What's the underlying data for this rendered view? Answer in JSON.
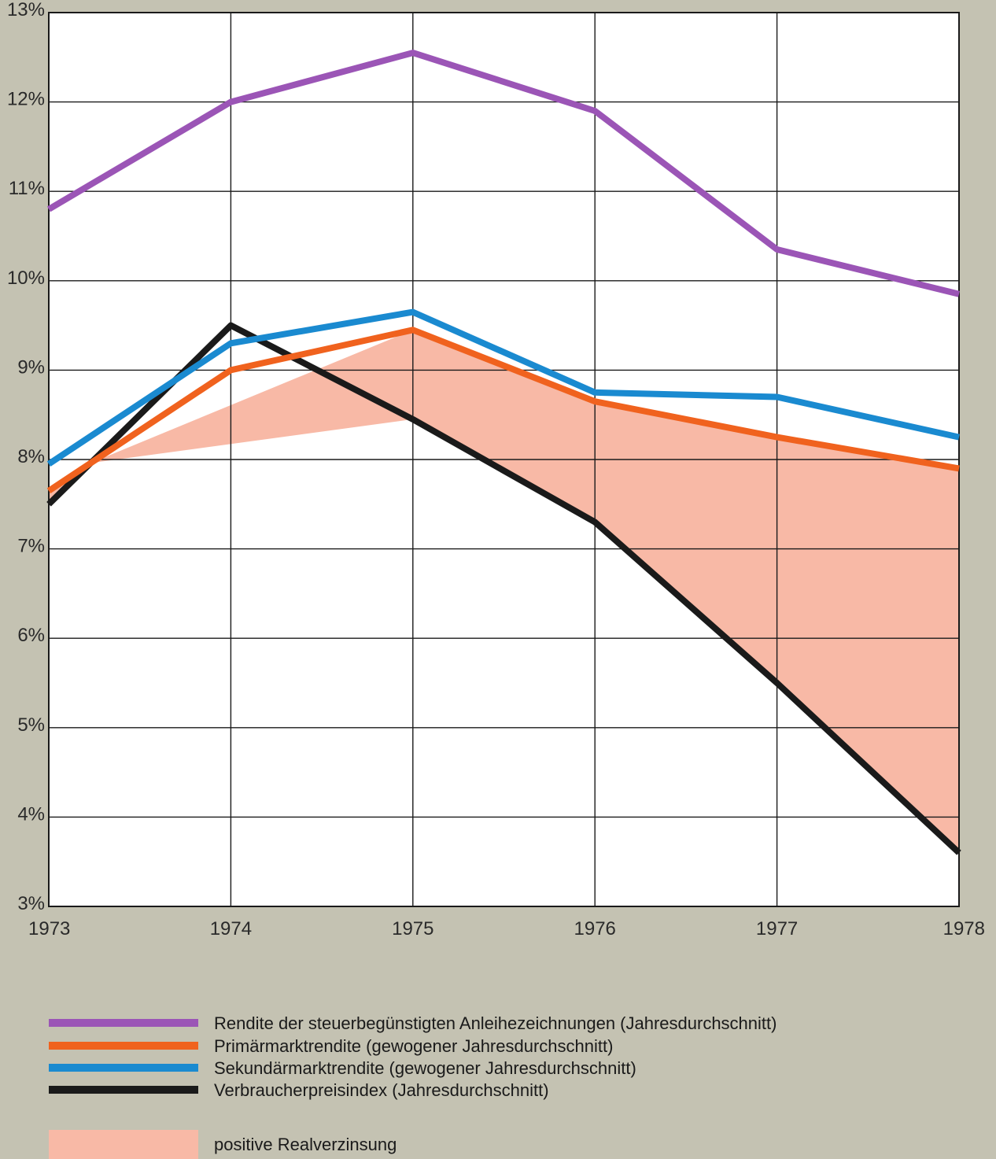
{
  "chart_data": {
    "type": "line",
    "x": [
      1973,
      1974,
      1975,
      1976,
      1977,
      1978
    ],
    "x_tick_labels": [
      "1973",
      "1974",
      "1975",
      "1976",
      "1977",
      "1978"
    ],
    "ylim": [
      3,
      13
    ],
    "y_ticks": [
      3,
      4,
      5,
      6,
      7,
      8,
      9,
      10,
      11,
      12,
      13
    ],
    "y_tick_labels": [
      "3%",
      "4%",
      "5%",
      "6%",
      "7%",
      "8%",
      "9%",
      "10%",
      "11%",
      "12%",
      "13%"
    ],
    "grid": true,
    "legend_position": "bottom",
    "series": [
      {
        "name": "Rendite der steuerbegünstigten Anleihezeichnungen (Jahresdurchschnitt)",
        "color": "#9b55b6",
        "values": [
          10.8,
          12.0,
          12.55,
          11.9,
          10.35,
          9.85
        ]
      },
      {
        "name": "Primärmarktrendite (gewogener Jahresdurchschnitt)",
        "color": "#f0621e",
        "values": [
          7.65,
          9.0,
          9.45,
          8.65,
          8.25,
          7.9
        ]
      },
      {
        "name": "Sekundärmarktrendite (gewogener Jahresdurchschnitt)",
        "color": "#1a8ad0",
        "values": [
          7.95,
          9.3,
          9.65,
          8.75,
          8.7,
          8.25
        ]
      },
      {
        "name": "Verbraucherpreisindex (Jahresdurchschnitt)",
        "color": "#1a1a1a",
        "values": [
          7.5,
          9.5,
          8.45,
          7.3,
          5.5,
          3.6
        ]
      }
    ],
    "area": {
      "name": "positive Realverzinsung",
      "color": "#f8b9a6",
      "upper_series": 1,
      "lower_series": 3
    }
  }
}
